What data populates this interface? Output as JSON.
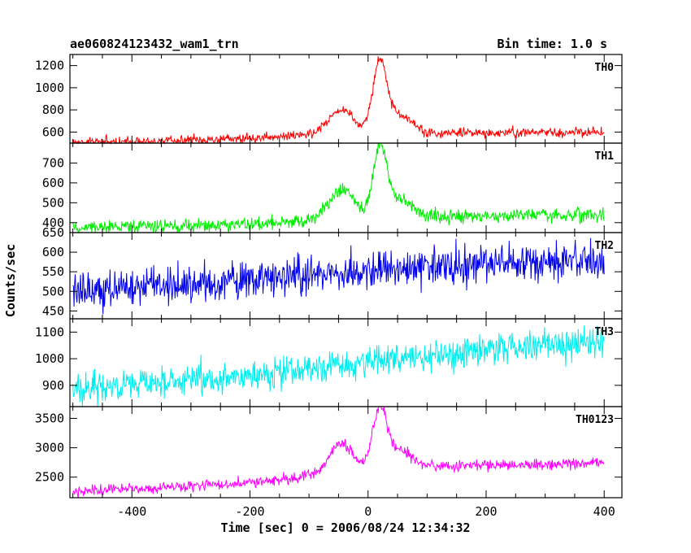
{
  "header": {
    "title": "ae060824123432_wam1_trn",
    "bin_time": "Bin time: 1.0 s"
  },
  "chart_data": {
    "type": "line",
    "xlabel": "Time [sec] 0 = 2006/08/24 12:34:32",
    "ylabel": "Counts/sec",
    "xlim": [
      -505,
      430
    ],
    "xticks": [
      -400,
      -200,
      0,
      200,
      400
    ],
    "x_range": [
      -500,
      400
    ],
    "grid": false,
    "panels": [
      {
        "name": "TH0",
        "color": "#ff0000",
        "ylim": [
          500,
          1300
        ],
        "yticks": [
          600,
          800,
          1000,
          1200
        ],
        "baseline": [
          [
            -500,
            505
          ],
          [
            -300,
            525
          ],
          [
            -150,
            560
          ],
          [
            -100,
            580
          ],
          [
            400,
            600
          ]
        ],
        "pulses": [
          [
            -45,
            220,
            30
          ],
          [
            20,
            630,
            17
          ],
          [
            55,
            160,
            28
          ]
        ],
        "noise": 22
      },
      {
        "name": "TH1",
        "color": "#00ee00",
        "ylim": [
          350,
          800
        ],
        "yticks": [
          400,
          500,
          600,
          700
        ],
        "baseline": [
          [
            -500,
            375
          ],
          [
            -200,
            392
          ],
          [
            -100,
            410
          ],
          [
            100,
            430
          ],
          [
            400,
            440
          ]
        ],
        "pulses": [
          [
            -45,
            150,
            30
          ],
          [
            20,
            350,
            17
          ],
          [
            55,
            90,
            28
          ]
        ],
        "noise": 17
      },
      {
        "name": "TH2",
        "color": "#0000ee",
        "ylim": [
          430,
          650
        ],
        "yticks": [
          450,
          500,
          550,
          600,
          650
        ],
        "baseline": [
          [
            -500,
            505
          ],
          [
            -200,
            525
          ],
          [
            0,
            555
          ],
          [
            200,
            570
          ],
          [
            400,
            580
          ]
        ],
        "pulses": [],
        "noise": 24
      },
      {
        "name": "TH3",
        "color": "#00eeee",
        "ylim": [
          820,
          1150
        ],
        "yticks": [
          900,
          1000,
          1100
        ],
        "baseline": [
          [
            -500,
            885
          ],
          [
            -200,
            935
          ],
          [
            0,
            985
          ],
          [
            200,
            1030
          ],
          [
            400,
            1070
          ]
        ],
        "pulses": [],
        "noise": 30
      },
      {
        "name": "TH0123",
        "color": "#ff00ff",
        "ylim": [
          2150,
          3700
        ],
        "yticks": [
          2500,
          3000,
          3500
        ],
        "baseline": [
          [
            -500,
            2255
          ],
          [
            -300,
            2340
          ],
          [
            -150,
            2450
          ],
          [
            -100,
            2520
          ],
          [
            100,
            2680
          ],
          [
            400,
            2740
          ]
        ],
        "pulses": [
          [
            -45,
            500,
            30
          ],
          [
            20,
            1050,
            17
          ],
          [
            55,
            300,
            28
          ]
        ],
        "noise": 45
      }
    ]
  }
}
